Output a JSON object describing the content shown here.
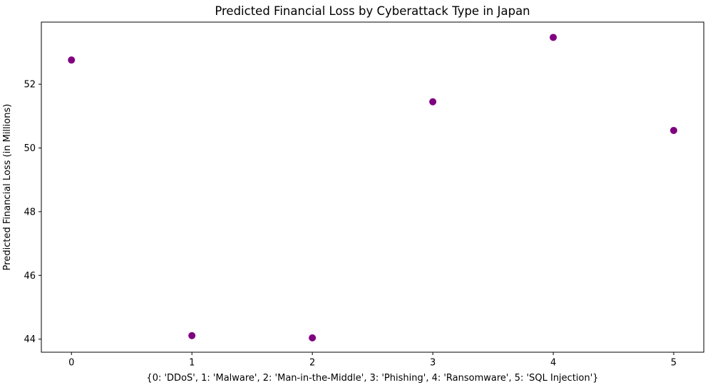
{
  "figure": {
    "background": "#ffffff",
    "spine_color": "#000000"
  },
  "chart_data": {
    "type": "scatter",
    "title": "Predicted Financial Loss by Cyberattack Type in Japan",
    "xlabel": "{0: 'DDoS', 1: 'Malware', 2: 'Man-in-the-Middle', 3: 'Phishing', 4: 'Ransomware', 5: 'SQL Injection'}",
    "ylabel": "Predicted Financial Loss (in Millions)",
    "x": [
      0,
      1,
      2,
      3,
      4,
      5
    ],
    "y": [
      52.76,
      44.11,
      44.04,
      51.45,
      53.47,
      50.55
    ],
    "point_labels": [
      "DDoS",
      "Malware",
      "Man-in-the-Middle",
      "Phishing",
      "Ransomware",
      "SQL Injection"
    ],
    "x_ticks": [
      0,
      1,
      2,
      3,
      4,
      5
    ],
    "y_ticks": [
      44,
      46,
      48,
      50,
      52
    ],
    "xlim": [
      -0.25,
      5.25
    ],
    "ylim": [
      43.59,
      53.95
    ],
    "grid": false,
    "legend": null,
    "marker_color": "#800080",
    "marker_radius": 5
  }
}
